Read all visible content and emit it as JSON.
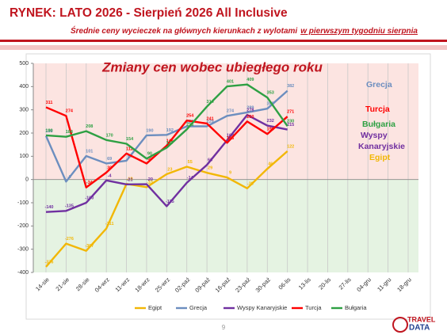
{
  "header": {
    "title": "RYNEK: LATO 2026 - Sierpień 2026 All Inclusive",
    "subtitle": "Średnie ceny wycieczek na głównych kierunkach  z wylotami",
    "subtitle_underlined": "w pierwszym tygodniu sierpnia"
  },
  "page_number": "9",
  "logo": {
    "line1": "TRAVEL",
    "line2": "DATA"
  },
  "chart_data": {
    "type": "line",
    "title": "Zmiany cen wobec ubiegłego roku",
    "categories": [
      "14-sie",
      "21-sie",
      "28-sie",
      "04-wrz",
      "11-wrz",
      "18-wrz",
      "25-wrz",
      "02-paź",
      "09-paź",
      "16-paź",
      "23-paź",
      "30-paź",
      "06-lis",
      "13-lis",
      "20-lis",
      "27-lis",
      "04-gru",
      "11-gru",
      "18-gru"
    ],
    "series": [
      {
        "name": "Egipt",
        "color": "#f2b705",
        "values": [
          -376,
          -276,
          -307,
          -211,
          -19,
          -33,
          23,
          55,
          29,
          9,
          -38,
          46,
          122,
          null,
          null,
          null,
          null,
          null,
          null
        ]
      },
      {
        "name": "Grecja",
        "color": "#6c8ebf",
        "values": [
          188,
          -9,
          101,
          69,
          81,
          190,
          192,
          229,
          229,
          274,
          289,
          305,
          382,
          null,
          null,
          null,
          null,
          null,
          null
        ]
      },
      {
        "name": "Wyspy Kanaryjskie",
        "color": "#7030a0",
        "values": [
          -140,
          -135,
          -100,
          -4,
          -21,
          -20,
          -115,
          -14,
          63,
          169,
          278,
          232,
          215,
          null,
          null,
          null,
          null,
          null,
          null
        ]
      },
      {
        "name": "Turcja",
        "color": "#ff0000",
        "values": [
          311,
          274,
          -34,
          30,
          112,
          69,
          146,
          254,
          241,
          158,
          250,
          196,
          271,
          null,
          null,
          null,
          null,
          null,
          null
        ]
      },
      {
        "name": "Bułgaria",
        "color": "#2ea043",
        "values": [
          190,
          184,
          208,
          170,
          154,
          90,
          137,
          216,
          314,
          401,
          409,
          353,
          230,
          null,
          null,
          null,
          null,
          null,
          null
        ]
      }
    ],
    "ylim": [
      -400,
      500
    ],
    "yticks": [
      -400,
      -300,
      -200,
      -100,
      0,
      100,
      200,
      300,
      400,
      500
    ],
    "grid": true,
    "annotations": [
      "Grecja",
      "Turcja",
      "Bułgaria",
      "Wyspy",
      "Kanaryjskie",
      "Egipt"
    ]
  }
}
